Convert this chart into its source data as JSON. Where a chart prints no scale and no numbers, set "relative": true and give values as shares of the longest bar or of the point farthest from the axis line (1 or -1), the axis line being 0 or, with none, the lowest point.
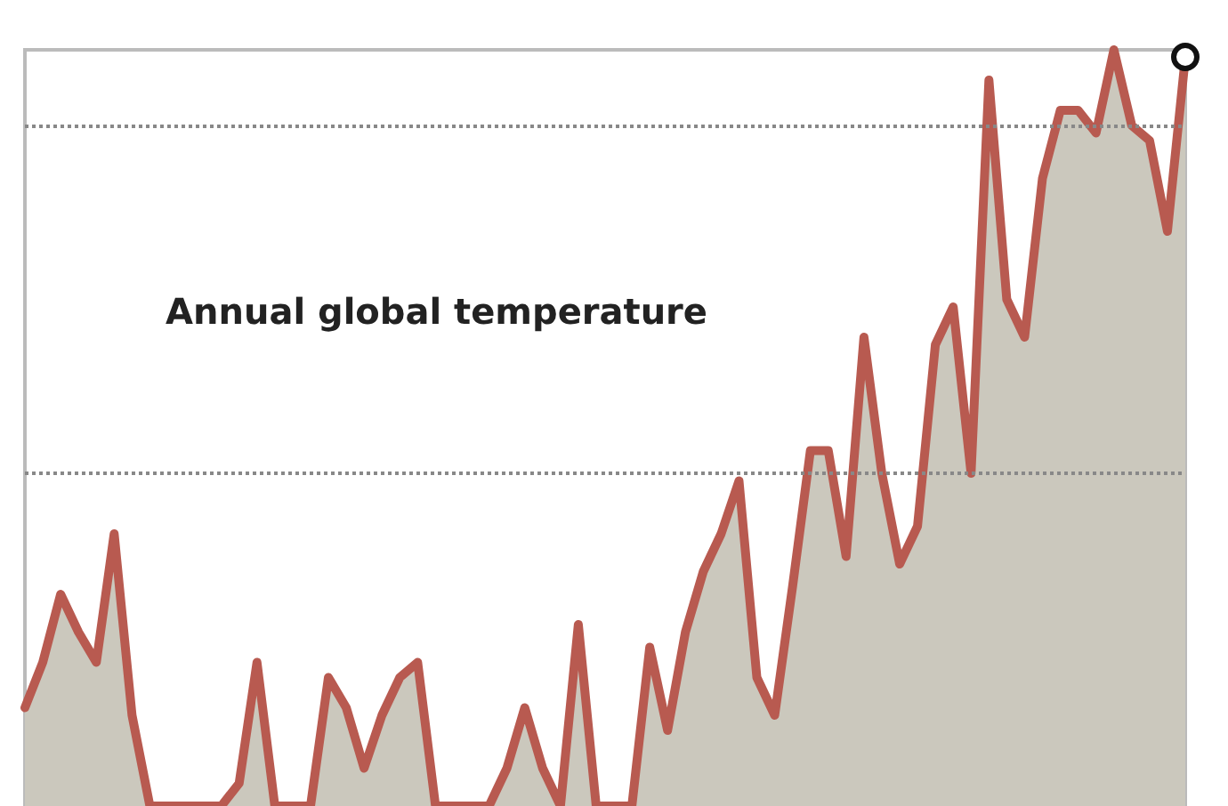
{
  "chart_data": {
    "type": "area",
    "title": "Annual global temperature",
    "relative": true,
    "ref_lines": [
      {
        "axis": "y",
        "value": 0.9,
        "line_style": "dotted",
        "color": "#888888"
      },
      {
        "axis": "y",
        "value": 0.44,
        "line_style": "dotted",
        "color": "#888888"
      }
    ],
    "marker": "none",
    "line_style": "solid",
    "categories": [
      null,
      null,
      null,
      null,
      null,
      null,
      null,
      null,
      null,
      null,
      null,
      null,
      null,
      null,
      null,
      null,
      null,
      null,
      null,
      null,
      null,
      null,
      null,
      null,
      null,
      null,
      null,
      null,
      null,
      null,
      null,
      null,
      null,
      null,
      null,
      null,
      null,
      null,
      null,
      null,
      null,
      null,
      null,
      null,
      null,
      null,
      null,
      null,
      null,
      null,
      null,
      null,
      null,
      null,
      null,
      null,
      null,
      null,
      null,
      null,
      null,
      null,
      null,
      null,
      null,
      null
    ],
    "series": [
      {
        "color": "#b85a50",
        "values": [
          0.13,
          0.19,
          0.28,
          0.23,
          0.19,
          0.36,
          0.12,
          0,
          0,
          0,
          0,
          0,
          0.03,
          0.19,
          0,
          0,
          0,
          0.17,
          0.13,
          0.05,
          0.12,
          0.17,
          0.19,
          0,
          0,
          0,
          0,
          0.05,
          0.13,
          0.05,
          0,
          0.24,
          0,
          0,
          0,
          0.21,
          0.1,
          0.23,
          0.31,
          0.36,
          0.43,
          0.17,
          0.12,
          0.29,
          0.47,
          0.47,
          0.33,
          0.62,
          0.44,
          0.32,
          0.37,
          0.61,
          0.66,
          0.44,
          0.96,
          0.67,
          0.62,
          0.83,
          0.92,
          0.92,
          0.89,
          1,
          0.9,
          0.88,
          0.76,
          0.99
        ]
      }
    ]
  }
}
